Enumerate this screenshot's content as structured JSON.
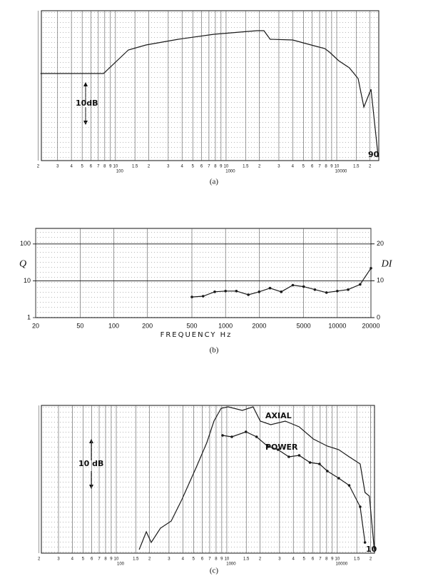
{
  "chart_data": [
    {
      "type": "line",
      "caption": "(a)",
      "xlog": true,
      "xlim": [
        21.4,
        24000
      ],
      "ylim": [
        -42,
        0
      ],
      "grid": true,
      "xticks": [
        {
          "value": 20,
          "label": "2"
        },
        {
          "value": 30,
          "label": "3"
        },
        {
          "value": 40,
          "label": "4"
        },
        {
          "value": 50,
          "label": "5"
        },
        {
          "value": 60,
          "label": "6"
        },
        {
          "value": 70,
          "label": "7"
        },
        {
          "value": 80,
          "label": "8"
        },
        {
          "value": 90,
          "label": "9"
        },
        {
          "value": 100,
          "label": "10"
        },
        {
          "value": 150,
          "label": "1.5"
        },
        {
          "value": 200,
          "label": "2"
        },
        {
          "value": 300,
          "label": "3"
        },
        {
          "value": 400,
          "label": "4"
        },
        {
          "value": 500,
          "label": "5"
        },
        {
          "value": 600,
          "label": "6"
        },
        {
          "value": 700,
          "label": "7"
        },
        {
          "value": 800,
          "label": "8"
        },
        {
          "value": 900,
          "label": "9"
        },
        {
          "value": 1000,
          "label": "10"
        },
        {
          "value": 1500,
          "label": "1.5"
        },
        {
          "value": 2000,
          "label": "2"
        },
        {
          "value": 3000,
          "label": "3"
        },
        {
          "value": 4000,
          "label": "4"
        },
        {
          "value": 5000,
          "label": "5"
        },
        {
          "value": 6000,
          "label": "6"
        },
        {
          "value": 7000,
          "label": "7"
        },
        {
          "value": 8000,
          "label": "8"
        },
        {
          "value": 9000,
          "label": "9"
        },
        {
          "value": 10000,
          "label": "10"
        },
        {
          "value": 15000,
          "label": "1.5"
        },
        {
          "value": 20000,
          "label": "2"
        }
      ],
      "decade_labels": [
        {
          "value": 100,
          "label": "100"
        },
        {
          "value": 1000,
          "label": "1000"
        },
        {
          "value": 10000,
          "label": "10000"
        }
      ],
      "annotations": [
        "10dB",
        "90"
      ],
      "series": [
        {
          "color": "#1a1a1a",
          "x": [
            21,
            78,
            131,
            189,
            370,
            778,
            1900,
            2200,
            2500,
            4000,
            6200,
            7800,
            8600,
            10400,
            13000,
            15600,
            17600,
            20400,
            23700
          ],
          "values": [
            -17.6,
            -17.6,
            -11,
            -9.6,
            -8,
            -6.6,
            -5.6,
            -5.6,
            -8,
            -8.2,
            -9.8,
            -10.6,
            -11.6,
            -14,
            -16,
            -19,
            -27,
            -22,
            -41
          ]
        }
      ]
    },
    {
      "type": "line",
      "caption": "(b)",
      "xlog": true,
      "ylog": true,
      "xlim": [
        20,
        20000
      ],
      "ylim": [
        1,
        265
      ],
      "y2lim": [
        0,
        24.2
      ],
      "grid": true,
      "xlabel": "FREQUENCY  Hz",
      "ylabel": "Q",
      "y2label": "DI",
      "xticks": [
        20,
        50,
        100,
        200,
        500,
        1000,
        2000,
        5000,
        10000,
        20000
      ],
      "yticks": [
        1,
        10,
        100
      ],
      "y2ticks": [
        0,
        10,
        20
      ],
      "series": [
        {
          "color": "#1a1a1a",
          "axis": "y2",
          "markers": true,
          "x": [
            500,
            630,
            800,
            1000,
            1250,
            1600,
            2000,
            2500,
            3150,
            4000,
            5000,
            6300,
            8000,
            10000,
            12500,
            16000,
            20000
          ],
          "values": [
            5.6,
            5.8,
            7.0,
            7.2,
            7.2,
            6.2,
            7.0,
            8.0,
            7.0,
            8.8,
            8.4,
            7.6,
            6.8,
            7.2,
            7.6,
            9.0,
            13.4
          ]
        }
      ]
    },
    {
      "type": "line",
      "caption": "(c)",
      "xlog": true,
      "xlim": [
        21,
        21700
      ],
      "ylim": [
        -41.4,
        0
      ],
      "grid": true,
      "xticks": [
        {
          "value": 20,
          "label": "2"
        },
        {
          "value": 30,
          "label": "3"
        },
        {
          "value": 40,
          "label": "4"
        },
        {
          "value": 50,
          "label": "5"
        },
        {
          "value": 60,
          "label": "6"
        },
        {
          "value": 70,
          "label": "7"
        },
        {
          "value": 80,
          "label": "8"
        },
        {
          "value": 90,
          "label": "9"
        },
        {
          "value": 100,
          "label": "10"
        },
        {
          "value": 150,
          "label": "1.5"
        },
        {
          "value": 200,
          "label": "2"
        },
        {
          "value": 300,
          "label": "3"
        },
        {
          "value": 400,
          "label": "4"
        },
        {
          "value": 500,
          "label": "5"
        },
        {
          "value": 600,
          "label": "6"
        },
        {
          "value": 700,
          "label": "7"
        },
        {
          "value": 800,
          "label": "8"
        },
        {
          "value": 900,
          "label": "9"
        },
        {
          "value": 1000,
          "label": "10"
        },
        {
          "value": 1500,
          "label": "1.5"
        },
        {
          "value": 2000,
          "label": "2"
        },
        {
          "value": 3000,
          "label": "3"
        },
        {
          "value": 4000,
          "label": "4"
        },
        {
          "value": 5000,
          "label": "5"
        },
        {
          "value": 6000,
          "label": "6"
        },
        {
          "value": 7000,
          "label": "7"
        },
        {
          "value": 8000,
          "label": "8"
        },
        {
          "value": 9000,
          "label": "9"
        },
        {
          "value": 10000,
          "label": "10"
        },
        {
          "value": 15000,
          "label": "1.5"
        },
        {
          "value": 20000,
          "label": "2"
        }
      ],
      "decade_labels": [
        {
          "value": 100,
          "label": "100"
        },
        {
          "value": 1000,
          "label": "1000"
        },
        {
          "value": 10000,
          "label": "10000"
        }
      ],
      "annotations": [
        "10 dB",
        "10"
      ],
      "series": [
        {
          "name": "AXIAL",
          "color": "#1a1a1a",
          "x": [
            161,
            187,
            207,
            251,
            314,
            392,
            528,
            660,
            765,
            889,
            1030,
            1380,
            1730,
            2010,
            2500,
            3380,
            4520,
            6060,
            8120,
            10300,
            12800,
            16100,
            17800,
            19500,
            21600
          ],
          "values": [
            -40.4,
            -35.4,
            -38.4,
            -34.4,
            -32.4,
            -26.4,
            -17.4,
            -10.4,
            -4.4,
            -0.8,
            -0.4,
            -1.4,
            -0.4,
            -4.4,
            -5.4,
            -4.4,
            -6,
            -9.4,
            -11.4,
            -12.4,
            -14.4,
            -16.4,
            -24.4,
            -25.4,
            -40.4
          ]
        },
        {
          "name": "POWER",
          "color": "#1a1a1a",
          "markers": true,
          "x": [
            915,
            1110,
            1490,
            1860,
            2330,
            2910,
            3640,
            4520,
            5660,
            6900,
            8120,
            10300,
            12800,
            16100,
            17800
          ],
          "values": [
            -8.4,
            -8.8,
            -7.4,
            -8.8,
            -11.4,
            -12.4,
            -14.4,
            -14,
            -16,
            -16.4,
            -18.4,
            -20.4,
            -22.4,
            -28.4,
            -38.4
          ]
        }
      ]
    }
  ]
}
